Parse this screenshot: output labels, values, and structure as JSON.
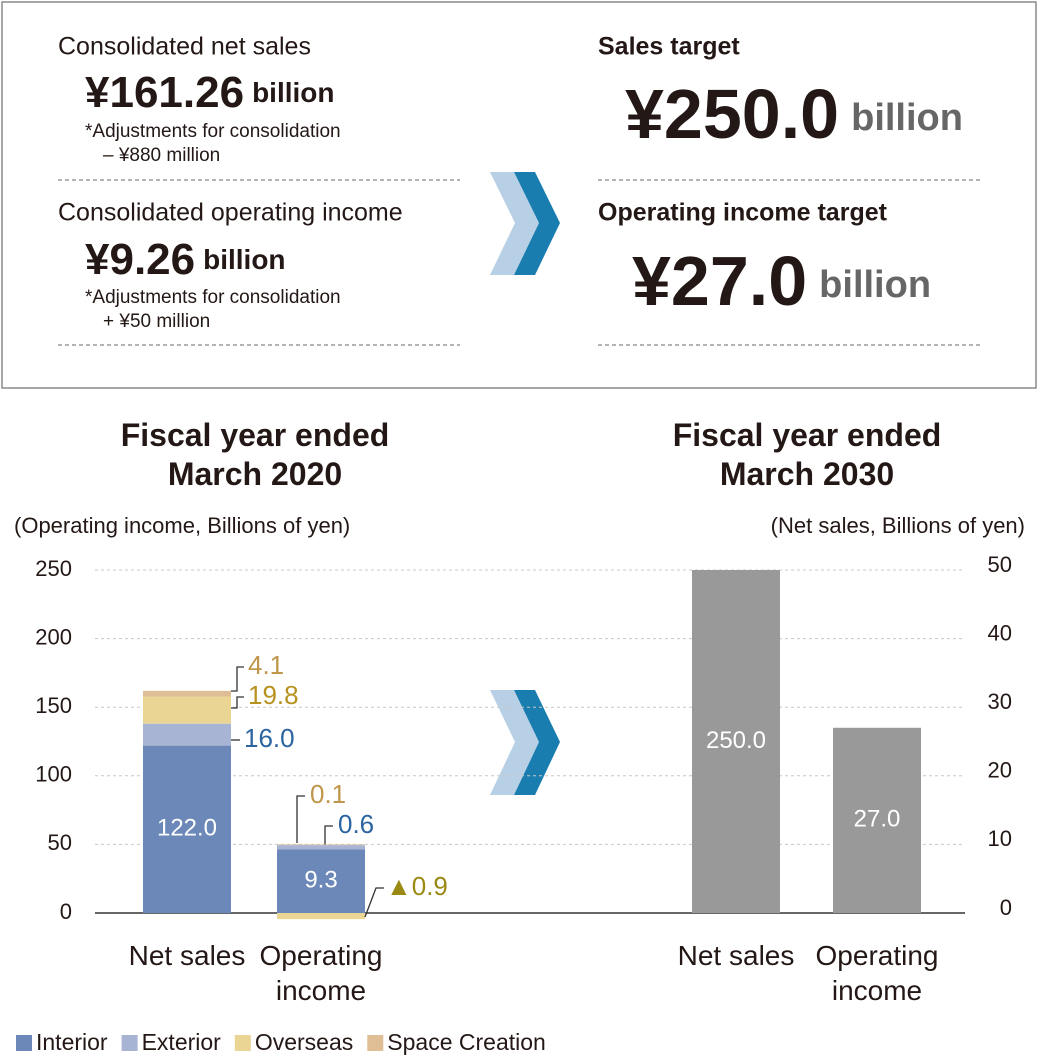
{
  "summary": {
    "actual": [
      {
        "label": "Consolidated net sales",
        "amount": "¥161.26",
        "unit": "billion",
        "notes": [
          "*Adjustments for consolidation",
          "– ¥880 million"
        ]
      },
      {
        "label": "Consolidated operating income",
        "amount": "¥9.26",
        "unit": "billion",
        "notes": [
          "*Adjustments for consolidation",
          "+ ¥50 million"
        ]
      }
    ],
    "targets": [
      {
        "label": "Sales target",
        "amount": "¥250.0",
        "unit": "billion"
      },
      {
        "label": "Operating income target",
        "amount": "¥27.0",
        "unit": "billion"
      }
    ]
  },
  "chart_data": [
    {
      "type": "bar",
      "stacked": true,
      "title": "Fiscal year ended March 2020",
      "y_label": "(Operating income, Billions of yen)",
      "categories": [
        "Net sales",
        "Operating income"
      ],
      "ylim": [
        0,
        250
      ],
      "yticks": [
        0,
        50,
        100,
        150,
        200,
        250
      ],
      "y2lim": [
        0,
        50
      ],
      "grid": true,
      "series": [
        {
          "name": "Interior",
          "color": "#6b88b8",
          "label_color": "#ffffff",
          "values": [
            122.0,
            null
          ],
          "value_labels": [
            "122.0",
            null
          ]
        },
        {
          "name": "Exterior",
          "color": "#a8b4d3",
          "label_color": "#2b64a0",
          "values": [
            16.0,
            null
          ],
          "value_labels": [
            "16.0",
            null
          ]
        },
        {
          "name": "Overseas",
          "color": "#ead595",
          "label_color": "#b8921f",
          "values": [
            19.8,
            null
          ],
          "value_labels": [
            "19.8",
            null
          ]
        },
        {
          "name": "Space Creation",
          "color": "#dfbd95",
          "label_color": "#c0964a",
          "values": [
            4.1,
            null
          ],
          "value_labels": [
            "4.1",
            null
          ]
        },
        {
          "axis": "y2",
          "color": "#6b88b8",
          "label_color": "#ffffff",
          "values": [
            null,
            9.3
          ],
          "value_labels": [
            null,
            "9.3"
          ]
        },
        {
          "axis": "y2",
          "color": "#a8b4d3",
          "label_color": "#2b64a0",
          "values": [
            null,
            0.6
          ],
          "value_labels": [
            null,
            "0.6"
          ]
        },
        {
          "axis": "y2",
          "color": "#ead595",
          "label_color": "#9a8a14",
          "values": [
            null,
            -0.9
          ],
          "value_labels": [
            null,
            "▲0.9"
          ]
        },
        {
          "axis": "y2",
          "color": "#dfbd95",
          "label_color": "#c0964a",
          "values": [
            null,
            0.1
          ],
          "value_labels": [
            null,
            "0.1"
          ]
        }
      ]
    },
    {
      "type": "bar",
      "title": "Fiscal year ended March 2030",
      "y2_label": "(Net sales, Billions of yen)",
      "categories": [
        "Net sales",
        "Operating income"
      ],
      "ylim": [
        0,
        250
      ],
      "y2lim": [
        0,
        50
      ],
      "y2ticks": [
        0,
        10,
        20,
        30,
        40,
        50
      ],
      "series": [
        {
          "color": "#999999",
          "label_color": "#ffffff",
          "values": [
            250.0,
            null
          ],
          "value_labels": [
            "250.0",
            null
          ]
        },
        {
          "axis": "y2",
          "color": "#999999",
          "label_color": "#ffffff",
          "values": [
            null,
            27.0
          ],
          "value_labels": [
            null,
            "27.0"
          ]
        }
      ]
    }
  ]
}
